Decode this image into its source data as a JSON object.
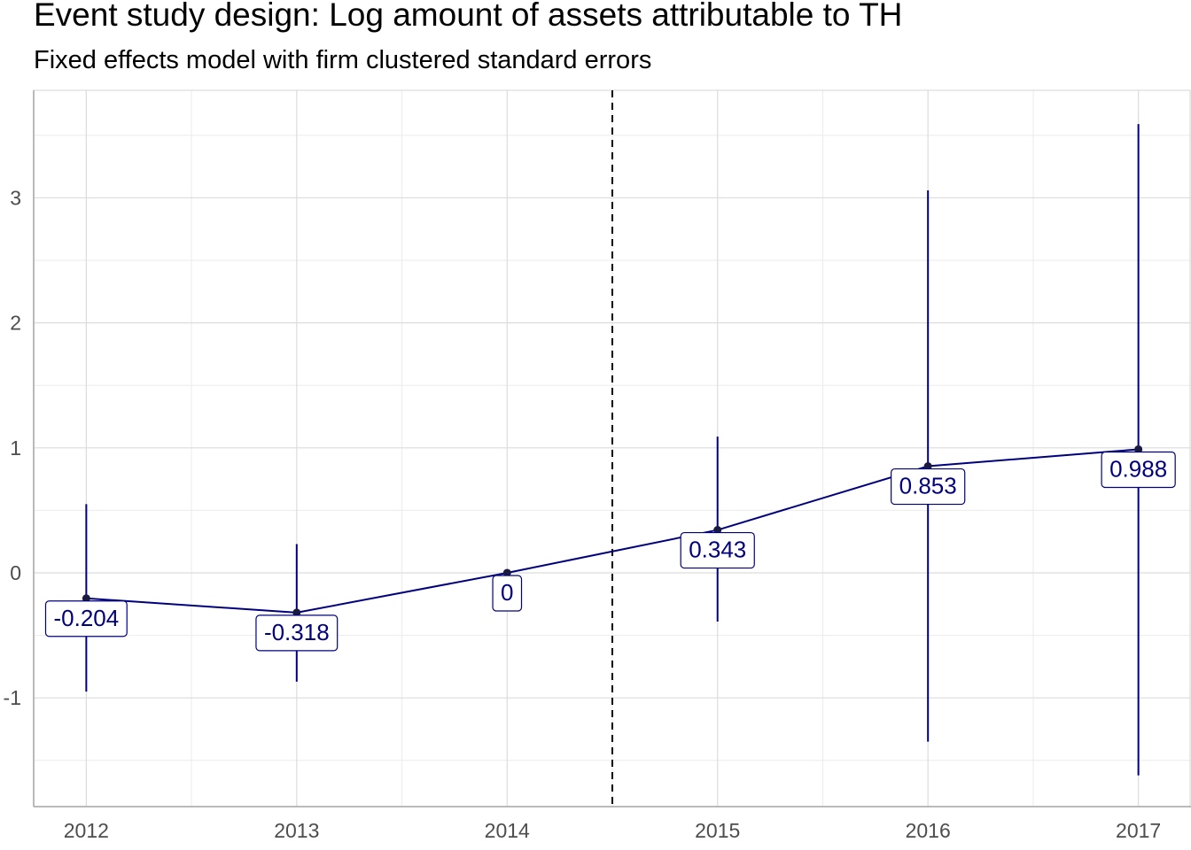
{
  "chart_data": {
    "type": "line",
    "title": "Event study design: Log amount of assets attributable to TH",
    "subtitle": "Fixed effects model with firm clustered standard errors",
    "xlabel": "",
    "ylabel": "",
    "x": [
      2012,
      2013,
      2014,
      2015,
      2016,
      2017
    ],
    "series": [
      {
        "values": [
          -0.204,
          -0.318,
          0,
          0.343,
          0.853,
          0.988
        ],
        "labels": [
          "-0.204",
          "-0.318",
          "0",
          "0.343",
          "0.853",
          "0.988"
        ],
        "ci_lower": [
          -0.95,
          -0.87,
          0,
          -0.39,
          -1.35,
          -1.62
        ],
        "ci_upper": [
          0.55,
          0.23,
          0,
          1.09,
          3.06,
          3.59
        ]
      }
    ],
    "xlim": [
      2011.75,
      2017.25
    ],
    "ylim": [
      -1.87,
      3.86
    ],
    "xticks": [
      "2012",
      "2013",
      "2014",
      "2015",
      "2016",
      "2017"
    ],
    "yticks": [
      "-1",
      "0",
      "1",
      "2",
      "3"
    ],
    "reference_line_x": 2014.5,
    "grid": true,
    "colors": {
      "series": "#00007f",
      "grid_major": "#dcdcdc",
      "grid_minor": "#ebebeb",
      "reference_line": "#000000"
    }
  }
}
